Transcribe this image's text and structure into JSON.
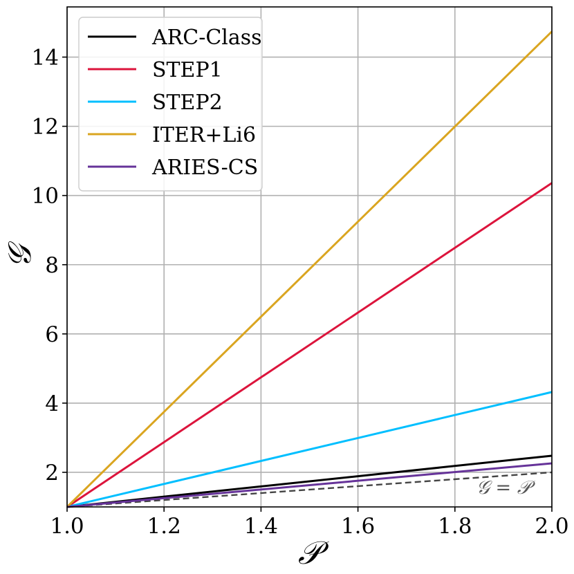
{
  "chart_data": {
    "type": "line",
    "xlabel": "𝒫",
    "ylabel": "𝒢",
    "xlim": [
      1.0,
      2.0
    ],
    "ylim": [
      1.0,
      15.45
    ],
    "xticks": [
      1.0,
      1.2,
      1.4,
      1.6,
      1.8,
      2.0
    ],
    "xtick_labels": [
      "1.0",
      "1.2",
      "1.4",
      "1.6",
      "1.8",
      "2.0"
    ],
    "yticks": [
      2,
      4,
      6,
      8,
      10,
      12,
      14
    ],
    "ytick_labels": [
      "2",
      "4",
      "6",
      "8",
      "10",
      "12",
      "14"
    ],
    "grid": true,
    "legend_position": "top-left",
    "series": [
      {
        "name": "ARC-Class",
        "color": "#000000",
        "x": [
          1.0,
          2.0
        ],
        "y": [
          1.0,
          2.48
        ]
      },
      {
        "name": "STEP1",
        "color": "#dc143c",
        "x": [
          1.0,
          2.0
        ],
        "y": [
          1.0,
          10.36
        ]
      },
      {
        "name": "STEP2",
        "color": "#00bfff",
        "x": [
          1.0,
          2.0
        ],
        "y": [
          1.0,
          4.32
        ]
      },
      {
        "name": "ITER+Li6",
        "color": "#daa520",
        "x": [
          1.0,
          2.0
        ],
        "y": [
          1.0,
          14.74
        ]
      },
      {
        "name": "ARIES-CS",
        "color": "#663399",
        "x": [
          1.0,
          2.0
        ],
        "y": [
          1.0,
          2.26
        ]
      }
    ],
    "reference_line": {
      "label": "𝒢 = 𝒫",
      "color": "#444444",
      "style": "dashed",
      "x": [
        1.0,
        2.0
      ],
      "y": [
        1.0,
        2.0
      ]
    }
  }
}
